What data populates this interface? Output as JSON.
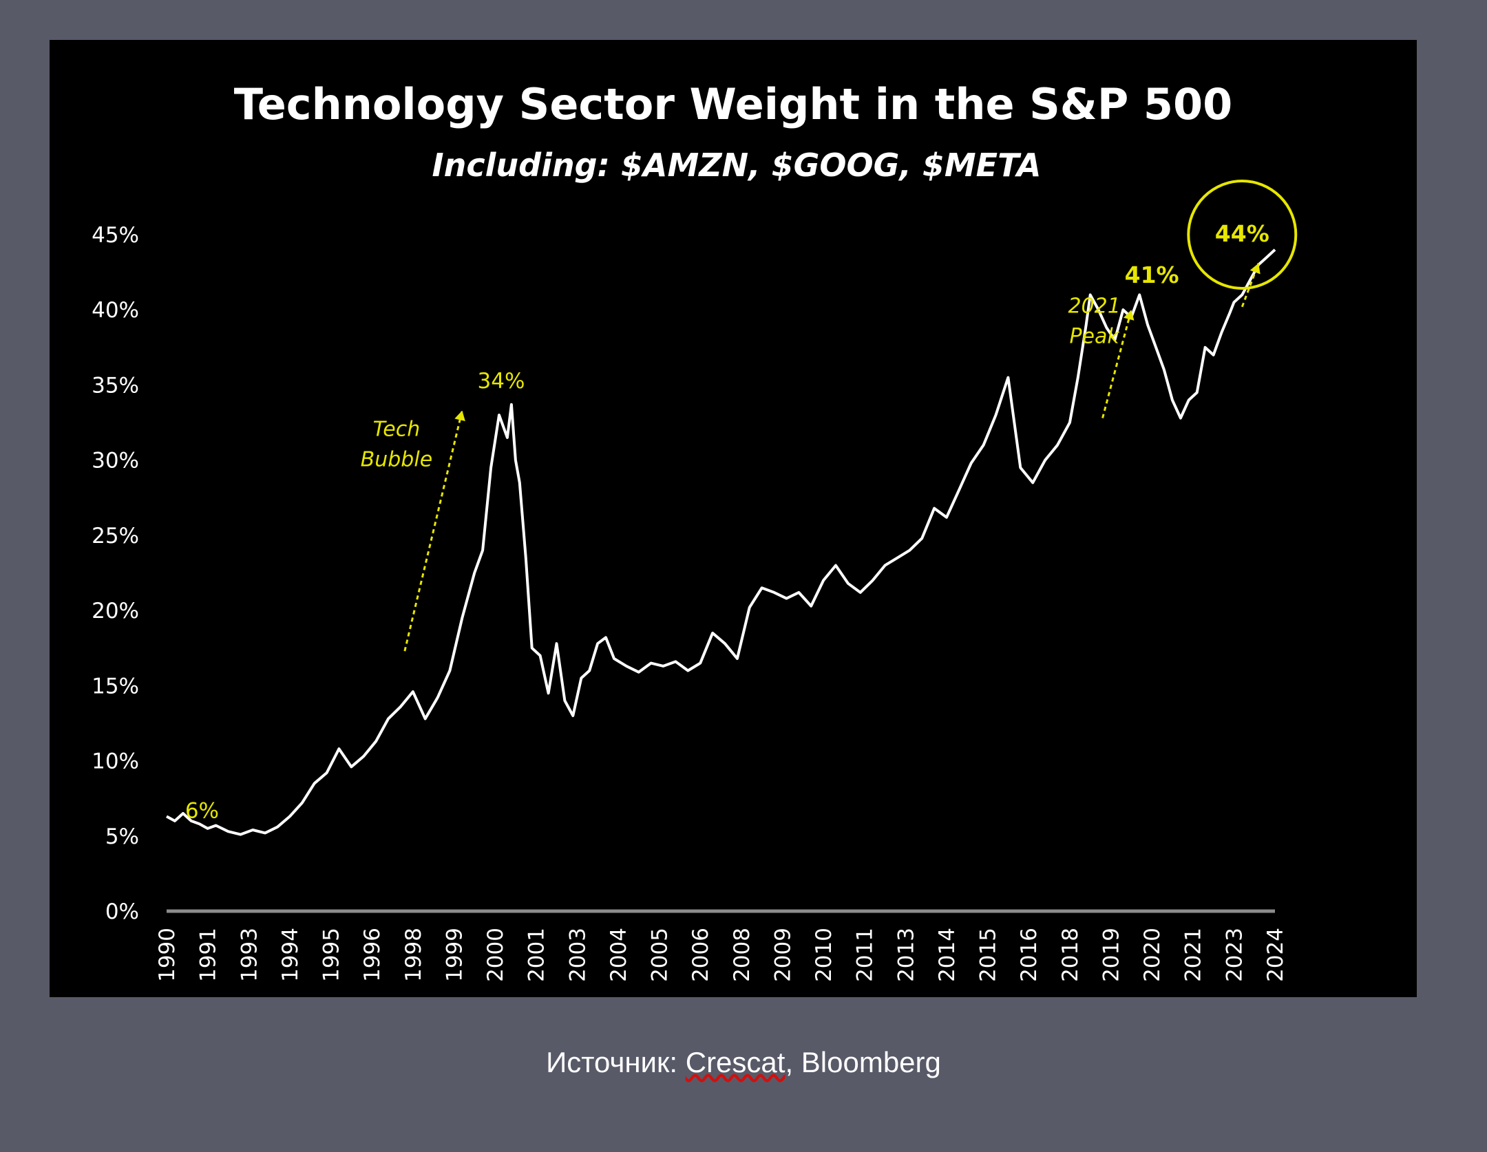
{
  "source": {
    "prefix": "Источник: ",
    "link": "Crescat",
    "suffix": ", Bloomberg"
  },
  "chart_data": {
    "type": "line",
    "title": "Technology Sector Weight in the S&P 500",
    "subtitle": "Including: $AMZN, $GOOG, $META",
    "xlabel": "",
    "ylabel": "",
    "ylim": [
      0,
      45
    ],
    "yticks": [
      "0%",
      "5%",
      "10%",
      "15%",
      "20%",
      "25%",
      "30%",
      "35%",
      "40%",
      "45%"
    ],
    "xticks": [
      "1990",
      "1991",
      "1993",
      "1994",
      "1995",
      "1996",
      "1998",
      "1999",
      "2000",
      "2001",
      "2003",
      "2004",
      "2005",
      "2006",
      "2008",
      "2009",
      "2010",
      "2011",
      "2013",
      "2014",
      "2015",
      "2016",
      "2018",
      "2019",
      "2020",
      "2021",
      "2023",
      "2024"
    ],
    "xlim": [
      0,
      27
    ],
    "line_color": "#ffffff",
    "accent_color": "#e6e600",
    "series": [
      {
        "name": "Technology Sector Weight",
        "x": [
          0,
          0.2,
          0.4,
          0.6,
          0.8,
          1.0,
          1.2,
          1.5,
          1.8,
          2.1,
          2.4,
          2.7,
          3.0,
          3.3,
          3.6,
          3.9,
          4.2,
          4.5,
          4.8,
          5.1,
          5.4,
          5.7,
          6.0,
          6.3,
          6.6,
          6.9,
          7.2,
          7.5,
          7.7,
          7.9,
          8.1,
          8.3,
          8.4,
          8.5,
          8.6,
          8.75,
          8.9,
          9.1,
          9.3,
          9.5,
          9.7,
          9.9,
          10.1,
          10.3,
          10.5,
          10.7,
          10.9,
          11.2,
          11.5,
          11.8,
          12.1,
          12.4,
          12.7,
          13.0,
          13.3,
          13.6,
          13.9,
          14.2,
          14.5,
          14.8,
          15.1,
          15.4,
          15.7,
          16.0,
          16.3,
          16.6,
          16.9,
          17.2,
          17.5,
          17.8,
          18.1,
          18.4,
          18.7,
          19.0,
          19.3,
          19.6,
          19.9,
          20.2,
          20.5,
          20.8,
          21.1,
          21.4,
          21.7,
          22.0,
          22.2,
          22.4,
          22.5,
          22.7,
          22.9,
          23.1,
          23.3,
          23.5,
          23.7,
          23.9,
          24.1,
          24.3,
          24.5,
          24.7,
          24.9,
          25.1,
          25.3,
          25.5,
          25.7,
          25.9,
          26.0,
          26.2,
          26.4,
          26.6,
          26.8,
          27.0
        ],
        "values": [
          6.3,
          6.0,
          6.5,
          6.0,
          5.8,
          5.5,
          5.7,
          5.3,
          5.1,
          5.4,
          5.2,
          5.6,
          6.3,
          7.2,
          8.5,
          9.2,
          10.8,
          9.6,
          10.3,
          11.3,
          12.8,
          13.6,
          14.6,
          12.8,
          14.2,
          16.0,
          19.5,
          22.5,
          24.0,
          29.5,
          33.0,
          31.5,
          33.7,
          30.0,
          28.5,
          23.5,
          17.5,
          17.0,
          14.5,
          17.8,
          14.0,
          13.0,
          15.5,
          16.0,
          17.8,
          18.2,
          16.8,
          16.3,
          15.9,
          16.5,
          16.3,
          16.6,
          16.0,
          16.5,
          18.5,
          17.8,
          16.8,
          20.2,
          21.5,
          21.2,
          20.8,
          21.2,
          20.3,
          22.0,
          23.0,
          21.8,
          21.2,
          22.0,
          23.0,
          23.5,
          24.0,
          24.8,
          26.8,
          26.2,
          28.0,
          29.8,
          31.0,
          33.0,
          35.5,
          29.5,
          28.5,
          30.0,
          31.0,
          32.5,
          35.5,
          39.0,
          41.0,
          40.0,
          38.8,
          38.0,
          40.0,
          39.5,
          41.0,
          39.0,
          37.5,
          36.0,
          34.0,
          32.8,
          34.0,
          34.5,
          37.5,
          37.0,
          38.5,
          39.8,
          40.5,
          41.0,
          42.0,
          43.0,
          43.5,
          44.0
        ]
      }
    ],
    "annotations": {
      "start_label": "6%",
      "tech_bubble_line1": "Tech",
      "tech_bubble_line2": "Bubble",
      "peak_2000": "34%",
      "peak_2021_line1": "2021",
      "peak_2021_line2": "Peak",
      "peak_2021_value": "41%",
      "latest_value": "44%"
    }
  }
}
